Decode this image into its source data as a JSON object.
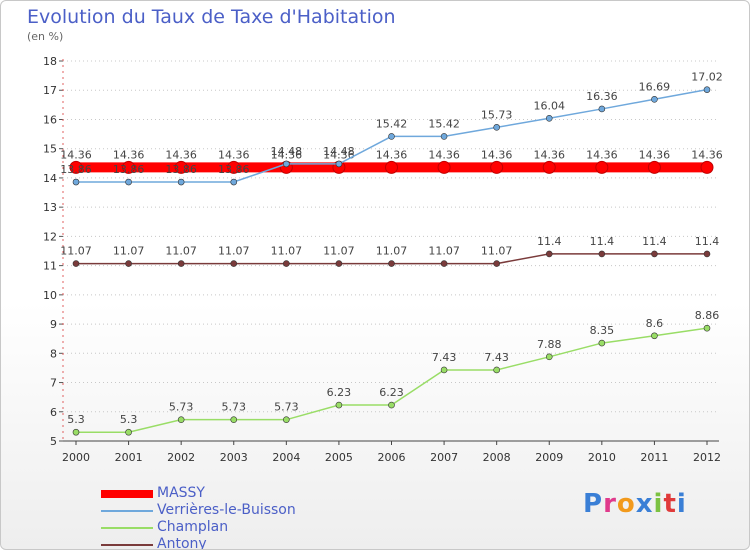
{
  "chart_data": {
    "type": "line",
    "title": "Evolution du Taux de Taxe d'Habitation",
    "subtitle": "(en %)",
    "xlabel": "",
    "ylabel": "",
    "x": [
      "2000",
      "2001",
      "2002",
      "2003",
      "2004",
      "2005",
      "2006",
      "2007",
      "2008",
      "2009",
      "2010",
      "2011",
      "2012"
    ],
    "ylim": [
      5,
      18
    ],
    "yticks": [
      5,
      6,
      7,
      8,
      9,
      10,
      11,
      12,
      13,
      14,
      15,
      16,
      17,
      18
    ],
    "grid": "horizontal-dotted",
    "legend_position": "bottom-left",
    "series": [
      {
        "name": "MASSY",
        "color": "#ff0000",
        "values": [
          14.36,
          14.36,
          14.36,
          14.36,
          14.36,
          14.36,
          14.36,
          14.36,
          14.36,
          14.36,
          14.36,
          14.36,
          14.36
        ],
        "labels": [
          "14.36",
          "14.36",
          "14.36",
          "14.36",
          "14.36",
          "14.36",
          "14.36",
          "14.36",
          "14.36",
          "14.36",
          "14.36",
          "14.36",
          "14.36"
        ]
      },
      {
        "name": "Verrières-le-Buisson",
        "color": "#6fa8dc",
        "values": [
          13.86,
          13.86,
          13.86,
          13.86,
          14.48,
          14.48,
          15.42,
          15.42,
          15.73,
          16.04,
          16.36,
          16.69,
          17.02
        ],
        "labels": [
          "13.86",
          "13.86",
          "13.86",
          "13.86",
          "14.48",
          "14.48",
          "15.42",
          "15.42",
          "15.73",
          "16.04",
          "16.36",
          "16.69",
          "17.02"
        ]
      },
      {
        "name": "Champlan",
        "color": "#99dd66",
        "values": [
          5.3,
          5.3,
          5.73,
          5.73,
          5.73,
          6.23,
          6.23,
          7.43,
          7.43,
          7.88,
          8.35,
          8.6,
          8.86
        ],
        "labels": [
          "5.3",
          "5.3",
          "5.73",
          "5.73",
          "5.73",
          "6.23",
          "6.23",
          "7.43",
          "7.43",
          "7.88",
          "8.35",
          "8.6",
          "8.86"
        ]
      },
      {
        "name": "Antony",
        "color": "#7a3b3b",
        "values": [
          11.07,
          11.07,
          11.07,
          11.07,
          11.07,
          11.07,
          11.07,
          11.07,
          11.07,
          11.4,
          11.4,
          11.4,
          11.4
        ],
        "labels": [
          "11.07",
          "11.07",
          "11.07",
          "11.07",
          "11.07",
          "11.07",
          "11.07",
          "11.07",
          "11.07",
          "11.4",
          "11.4",
          "11.4",
          "11.4"
        ]
      }
    ]
  },
  "logo": {
    "text": "Proxiti"
  }
}
